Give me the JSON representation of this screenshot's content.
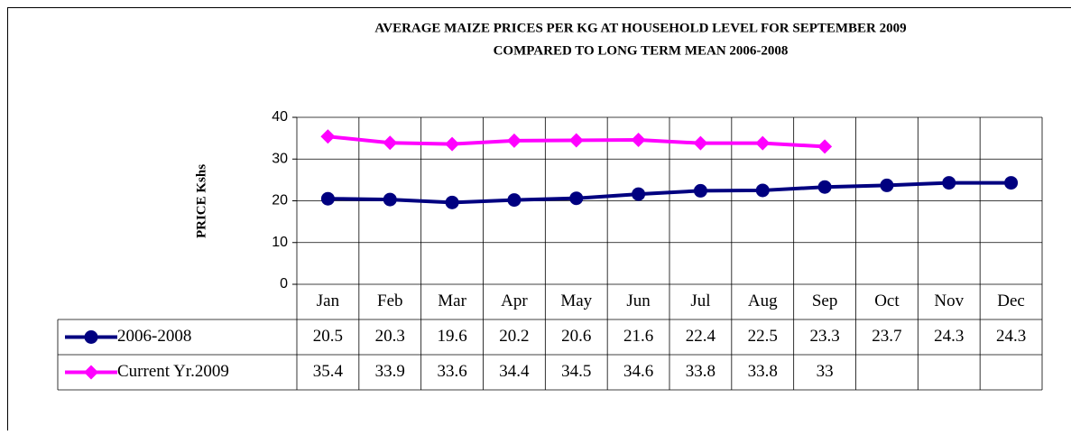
{
  "chart_data": {
    "type": "line",
    "title": [
      "AVERAGE  MAIZE PRICES PER KG AT HOUSEHOLD LEVEL FOR SEPTEMBER 2009",
      "COMPARED TO LONG TERM MEAN 2006-2008"
    ],
    "y_label": "PRICE Kshs",
    "categories": [
      "Jan",
      "Feb",
      "Mar",
      "Apr",
      "May",
      "Jun",
      "Jul",
      "Aug",
      "Sep",
      "Oct",
      "Nov",
      "Dec"
    ],
    "series": [
      {
        "name": "2006-2008",
        "color": "#000080",
        "marker": "circle",
        "values": [
          20.5,
          20.3,
          19.6,
          20.2,
          20.6,
          21.6,
          22.4,
          22.5,
          23.3,
          23.7,
          24.3,
          24.3
        ]
      },
      {
        "name": "Current Yr.2009",
        "color": "#ff00ff",
        "marker": "diamond",
        "values": [
          35.4,
          33.9,
          33.6,
          34.4,
          34.5,
          34.6,
          33.8,
          33.8,
          33,
          null,
          null,
          null
        ]
      }
    ],
    "ylim": [
      0,
      40
    ],
    "yticks": [
      0,
      10,
      20,
      30,
      40
    ],
    "grid": true,
    "data_table": true
  }
}
